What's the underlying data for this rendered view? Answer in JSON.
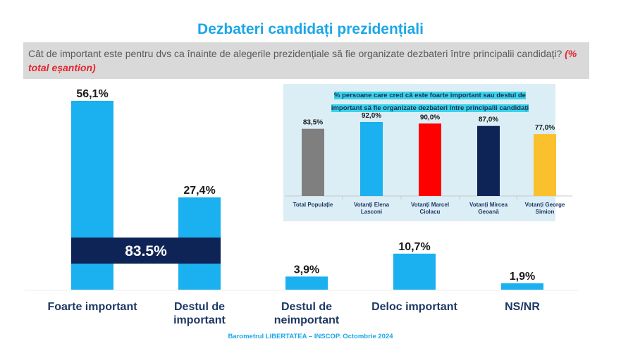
{
  "title": "Dezbateri candidați prezidențiali",
  "question": {
    "text": "Cât de important este pentru dvs ca înainte de alegerile prezidențiale să fie organizate dezbateri între principalii candidați?",
    "note": "(% total eșantion)"
  },
  "colors": {
    "main_bar": "#1bb0ef",
    "highlight_band": "#0f2456",
    "title": "#1aa7e8"
  },
  "chart_data": [
    {
      "type": "bar",
      "categories": [
        "Foarte important",
        "Destul de important",
        "Destul de neimportant",
        "Deloc important",
        "NS/NR"
      ],
      "values": [
        56.1,
        27.4,
        3.9,
        10.7,
        1.9
      ],
      "value_labels": [
        "56,1%",
        "27,4%",
        "3,9%",
        "10,7%",
        "1,9%"
      ],
      "annotation": "83.5%",
      "ylim": [
        0,
        60
      ]
    },
    {
      "type": "bar",
      "title": "% persoane care cred că este foarte important sau destul de important să fie organizate dezbateri între principalii candidați",
      "categories": [
        "Total Populație",
        "Votanți Elena Lasconi",
        "Votanți Marcel Ciolacu",
        "Votanți Mircea Geoană",
        "Votanți George Simion"
      ],
      "values": [
        83.5,
        92.0,
        90.0,
        87.0,
        77.0
      ],
      "value_labels": [
        "83,5%",
        "92,0%",
        "90,0%",
        "87,0%",
        "77,0%"
      ],
      "colors": [
        "#7f7f7f",
        "#1bb0ef",
        "#ff0000",
        "#0f2456",
        "#fbc02d"
      ],
      "ylim": [
        0,
        100
      ]
    }
  ],
  "footer": "Barometrul LIBERTATEA – INSCOP. Octombrie 2024"
}
